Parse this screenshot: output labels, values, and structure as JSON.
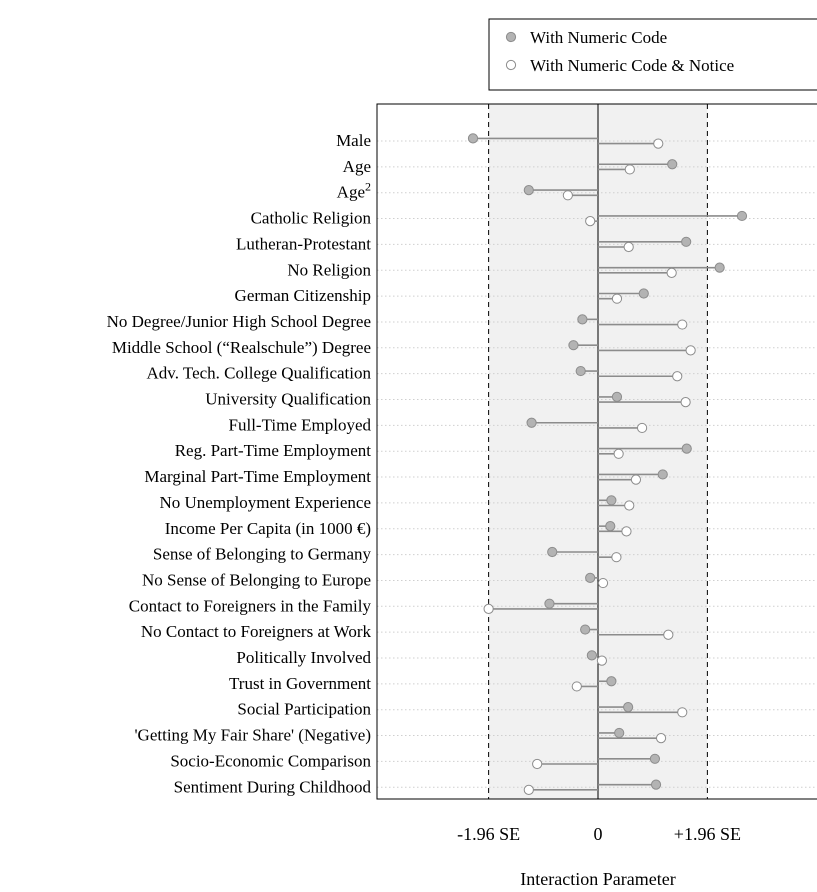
{
  "chart_data": {
    "type": "scatter",
    "title": "",
    "xlabel": "Interaction Parameter",
    "ylabel": "",
    "xlim": [
      -3.96,
      3.96
    ],
    "x_ticks": [
      {
        "value": -1.96,
        "label": "-1.96 SE"
      },
      {
        "value": 0,
        "label": "0"
      },
      {
        "value": 1.96,
        "label": "+1.96 SE"
      }
    ],
    "shaded_band": [
      -1.96,
      1.96
    ],
    "legend_position": "top-right",
    "categories": [
      "Male",
      "Age",
      "Age",
      "Catholic Religion",
      "Lutheran-Protestant",
      "No Religion",
      "German Citizenship",
      "No Degree/Junior High School Degree",
      "Middle School (“Realschule”) Degree",
      "Adv. Tech. College Qualification",
      "University Qualification",
      "Full-Time Employed",
      "Reg. Part-Time Employment",
      "Marginal Part-Time Employment",
      "No Unemployment Experience",
      "Income Per Capita (in 1000 €)",
      "Sense of Belonging to Germany",
      "No Sense of Belonging to Europe",
      "Contact to Foreigners in the Family",
      "No Contact to Foreigners at Work",
      "Politically Involved",
      "Trust in Government",
      "Social Participation",
      "'Getting My Fair Share' (Negative)",
      "Socio-Economic Comparison",
      "Sentiment During Childhood"
    ],
    "category_superscripts": {
      "2": "2"
    },
    "series": [
      {
        "name": "With Numeric Code",
        "color": "#b3b3b3",
        "stroke": "#8c8c8c",
        "values": [
          -2.24,
          1.33,
          -1.24,
          2.58,
          1.58,
          2.18,
          0.82,
          -0.28,
          -0.44,
          -0.31,
          0.34,
          -1.19,
          1.59,
          1.16,
          0.24,
          0.22,
          -0.82,
          -0.14,
          -0.87,
          -0.23,
          -0.11,
          0.24,
          0.54,
          0.38,
          1.02,
          1.04
        ]
      },
      {
        "name": "With Numeric Code & Notice",
        "color": "#ffffff",
        "stroke": "#8c8c8c",
        "values": [
          1.08,
          0.57,
          -0.54,
          -0.14,
          0.55,
          1.32,
          0.34,
          1.51,
          1.66,
          1.42,
          1.57,
          0.79,
          0.37,
          0.68,
          0.56,
          0.51,
          0.33,
          0.09,
          -1.96,
          1.26,
          0.07,
          -0.38,
          1.51,
          1.13,
          -1.09,
          -1.24
        ]
      }
    ]
  }
}
